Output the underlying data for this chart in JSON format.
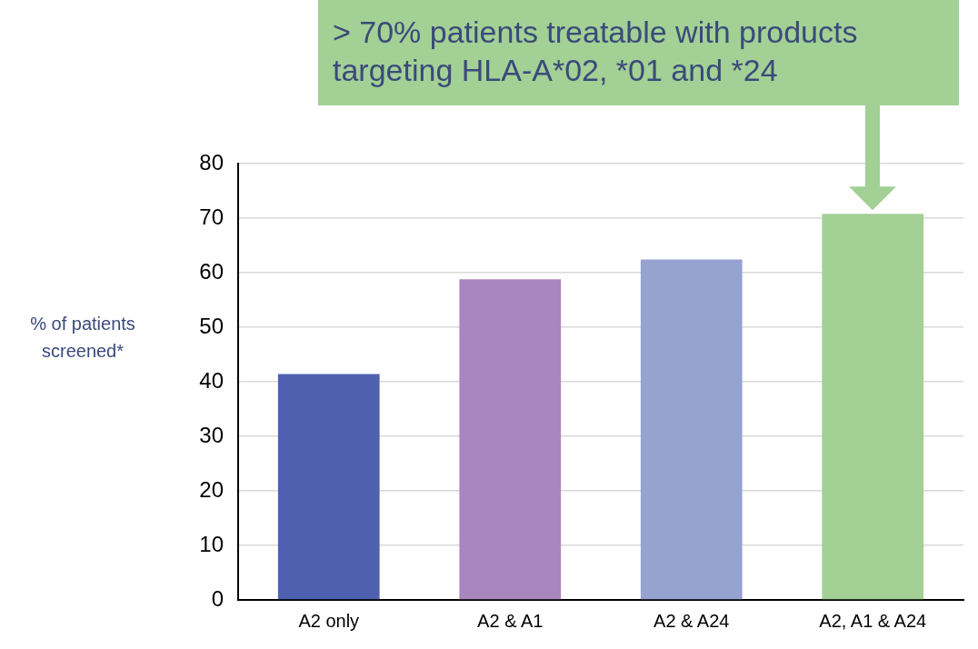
{
  "chart_data": {
    "type": "bar",
    "ylabel": "% of patients screened*",
    "categories": [
      "A2 only",
      "A2 & A1",
      "A2 & A24",
      "A2, A1 & A24"
    ],
    "values": [
      41.4,
      58.8,
      62.4,
      70.8
    ],
    "colors": [
      "#5060b0",
      "#aa86bf",
      "#96a2cf",
      "#a2d095"
    ],
    "ylim": [
      0,
      80
    ],
    "yticks": [
      0,
      10,
      20,
      30,
      40,
      50,
      60,
      70,
      80
    ],
    "grid": "y",
    "legend": false,
    "annotations": [
      "> 70% patients treatable with products targeting HLA-A*02, *01 and *24"
    ]
  }
}
